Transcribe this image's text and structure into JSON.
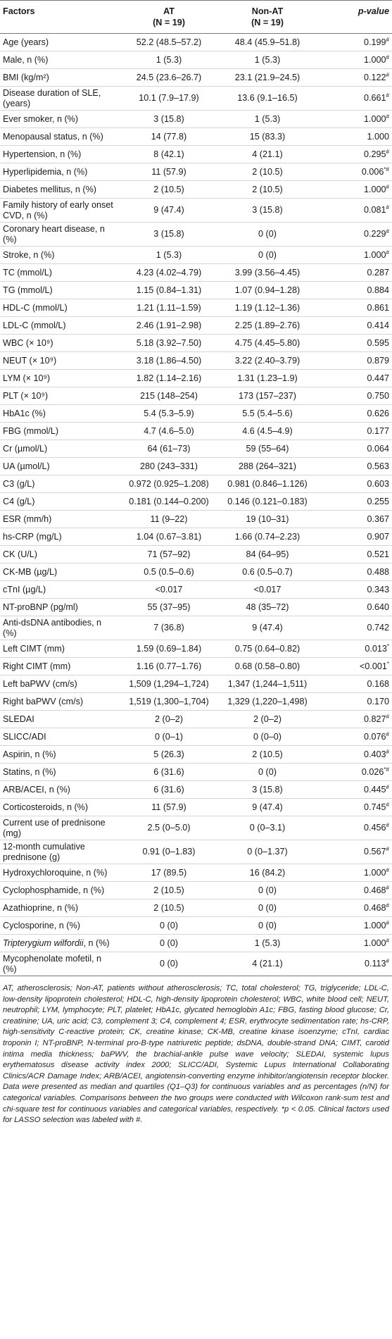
{
  "table": {
    "headers": {
      "factors": "Factors",
      "at": "AT",
      "at_n": "(N = 19)",
      "nonat": "Non-AT",
      "nonat_n": "(N = 19)",
      "pvalue": "p-value"
    },
    "rows": [
      {
        "factor": "Age (years)",
        "at": "52.2 (48.5–57.2)",
        "nonat": "48.4 (45.9–51.8)",
        "p": "0.199",
        "mark": "#"
      },
      {
        "factor": "Male, n (%)",
        "at": "1 (5.3)",
        "nonat": "1 (5.3)",
        "p": "1.000",
        "mark": "#"
      },
      {
        "factor": "BMI (kg/m²)",
        "at": "24.5 (23.6–26.7)",
        "nonat": "23.1 (21.9–24.5)",
        "p": "0.122",
        "mark": "#"
      },
      {
        "factor": "Disease duration of SLE, (years)",
        "at": "10.1 (7.9–17.9)",
        "nonat": "13.6 (9.1–16.5)",
        "p": "0.661",
        "mark": "#",
        "tall": true
      },
      {
        "factor": "Ever smoker, n (%)",
        "at": "3 (15.8)",
        "nonat": "1 (5.3)",
        "p": "1.000",
        "mark": "#"
      },
      {
        "factor": "Menopausal status, n (%)",
        "at": "14 (77.8)",
        "nonat": "15 (83.3)",
        "p": "1.000",
        "mark": ""
      },
      {
        "factor": "Hypertension, n (%)",
        "at": "8 (42.1)",
        "nonat": "4 (21.1)",
        "p": "0.295",
        "mark": "#"
      },
      {
        "factor": "Hyperlipidemia, n (%)",
        "at": "11 (57.9)",
        "nonat": "2 (10.5)",
        "p": "0.006",
        "mark": "*#"
      },
      {
        "factor": "Diabetes mellitus, n (%)",
        "at": "2 (10.5)",
        "nonat": "2 (10.5)",
        "p": "1.000",
        "mark": "#"
      },
      {
        "factor": "Family history of early onset CVD, n (%)",
        "at": "9 (47.4)",
        "nonat": "3 (15.8)",
        "p": "0.081",
        "mark": "#",
        "tall": true
      },
      {
        "factor": "Coronary heart disease, n (%)",
        "at": "3 (15.8)",
        "nonat": "0 (0)",
        "p": "0.229",
        "mark": "#",
        "tall": true
      },
      {
        "factor": "Stroke, n (%)",
        "at": "1 (5.3)",
        "nonat": "0 (0)",
        "p": "1.000",
        "mark": "#"
      },
      {
        "factor": "TC (mmol/L)",
        "at": "4.23 (4.02–4.79)",
        "nonat": "3.99 (3.56–4.45)",
        "p": "0.287",
        "mark": ""
      },
      {
        "factor": "TG (mmol/L)",
        "at": "1.15 (0.84–1.31)",
        "nonat": "1.07 (0.94–1.28)",
        "p": "0.884",
        "mark": ""
      },
      {
        "factor": "HDL-C (mmol/L)",
        "at": "1.21 (1.11–1.59)",
        "nonat": "1.19 (1.12–1.36)",
        "p": "0.861",
        "mark": ""
      },
      {
        "factor": "LDL-C (mmol/L)",
        "at": "2.46 (1.91–2.98)",
        "nonat": "2.25 (1.89–2.76)",
        "p": "0.414",
        "mark": ""
      },
      {
        "factor": "WBC (× 10⁹)",
        "at": "5.18 (3.92–7.50)",
        "nonat": "4.75 (4.45–5.80)",
        "p": "0.595",
        "mark": ""
      },
      {
        "factor": "NEUT (× 10⁹)",
        "at": "3.18 (1.86–4.50)",
        "nonat": "3.22 (2.40–3.79)",
        "p": "0.879",
        "mark": ""
      },
      {
        "factor": "LYM (× 10⁹)",
        "at": "1.82 (1.14–2.16)",
        "nonat": "1.31 (1.23–1.9)",
        "p": "0.447",
        "mark": ""
      },
      {
        "factor": "PLT (× 10⁹)",
        "at": "215 (148–254)",
        "nonat": "173 (157–237)",
        "p": "0.750",
        "mark": ""
      },
      {
        "factor": "HbA1c (%)",
        "at": "5.4 (5.3–5.9)",
        "nonat": "5.5 (5.4–5.6)",
        "p": "0.626",
        "mark": ""
      },
      {
        "factor": "FBG (mmol/L)",
        "at": "4.7 (4.6–5.0)",
        "nonat": "4.6 (4.5–4.9)",
        "p": "0.177",
        "mark": ""
      },
      {
        "factor": "Cr (µmol/L)",
        "at": "64 (61–73)",
        "nonat": "59 (55–64)",
        "p": "0.064",
        "mark": ""
      },
      {
        "factor": "UA (µmol/L)",
        "at": "280 (243–331)",
        "nonat": "288 (264–321)",
        "p": "0.563",
        "mark": ""
      },
      {
        "factor": "C3 (g/L)",
        "at": "0.972 (0.925–1.208)",
        "nonat": "0.981 (0.846–1.126)",
        "p": "0.603",
        "mark": ""
      },
      {
        "factor": "C4 (g/L)",
        "at": "0.181 (0.144–0.200)",
        "nonat": "0.146 (0.121–0.183)",
        "p": "0.255",
        "mark": ""
      },
      {
        "factor": "ESR (mm/h)",
        "at": "11 (9–22)",
        "nonat": "19 (10–31)",
        "p": "0.367",
        "mark": ""
      },
      {
        "factor": "hs-CRP (mg/L)",
        "at": "1.04 (0.67–3.81)",
        "nonat": "1.66 (0.74–2.23)",
        "p": "0.907",
        "mark": ""
      },
      {
        "factor": "CK (U/L)",
        "at": "71 (57–92)",
        "nonat": "84 (64–95)",
        "p": "0.521",
        "mark": ""
      },
      {
        "factor": "CK-MB (µg/L)",
        "at": "0.5 (0.5–0.6)",
        "nonat": "0.6 (0.5–0.7)",
        "p": "0.488",
        "mark": ""
      },
      {
        "factor": "cTnI (µg/L)",
        "at": "<0.017",
        "nonat": "<0.017",
        "p": "0.343",
        "mark": ""
      },
      {
        "factor": "NT-proBNP (pg/ml)",
        "at": "55 (37–95)",
        "nonat": "48 (35–72)",
        "p": "0.640",
        "mark": ""
      },
      {
        "factor": "Anti-dsDNA antibodies, n (%)",
        "at": "7 (36.8)",
        "nonat": "9 (47.4)",
        "p": "0.742",
        "mark": "",
        "tall": true
      },
      {
        "factor": "Left CIMT (mm)",
        "at": "1.59 (0.69–1.84)",
        "nonat": "0.75 (0.64–0.82)",
        "p": "0.013",
        "mark": "*"
      },
      {
        "factor": "Right CIMT (mm)",
        "at": "1.16 (0.77–1.76)",
        "nonat": "0.68 (0.58–0.80)",
        "p": "<0.001",
        "mark": "*"
      },
      {
        "factor": "Left baPWV (cm/s)",
        "at": "1,509 (1,294–1,724)",
        "nonat": "1,347 (1,244–1,511)",
        "p": "0.168",
        "mark": ""
      },
      {
        "factor": "Right baPWV (cm/s)",
        "at": "1,519 (1,300–1,704)",
        "nonat": "1,329 (1,220–1,498)",
        "p": "0.170",
        "mark": ""
      },
      {
        "factor": "SLEDAI",
        "at": "2 (0–2)",
        "nonat": "2 (0–2)",
        "p": "0.827",
        "mark": "#"
      },
      {
        "factor": "SLICC/ADI",
        "at": "0 (0–1)",
        "nonat": "0 (0–0)",
        "p": "0.076",
        "mark": "#"
      },
      {
        "factor": "Aspirin, n (%)",
        "at": "5 (26.3)",
        "nonat": "2 (10.5)",
        "p": "0.403",
        "mark": "#"
      },
      {
        "factor": "Statins, n (%)",
        "at": "6 (31.6)",
        "nonat": "0 (0)",
        "p": "0.026",
        "mark": "*#"
      },
      {
        "factor": "ARB/ACEI, n (%)",
        "at": "6 (31.6)",
        "nonat": "3 (15.8)",
        "p": "0.445",
        "mark": "#"
      },
      {
        "factor": "Corticosteroids, n (%)",
        "at": "11 (57.9)",
        "nonat": "9 (47.4)",
        "p": "0.745",
        "mark": "#"
      },
      {
        "factor": "Current use of prednisone (mg)",
        "at": "2.5 (0–5.0)",
        "nonat": "0 (0–3.1)",
        "p": "0.456",
        "mark": "#",
        "tall": true
      },
      {
        "factor": "12-month cumulative prednisone (g)",
        "at": "0.91 (0–1.83)",
        "nonat": "0 (0–1.37)",
        "p": "0.567",
        "mark": "#",
        "tall": true
      },
      {
        "factor": "Hydroxychloroquine, n (%)",
        "at": "17 (89.5)",
        "nonat": "16 (84.2)",
        "p": "1.000",
        "mark": "#"
      },
      {
        "factor": "Cyclophosphamide, n (%)",
        "at": "2 (10.5)",
        "nonat": "0 (0)",
        "p": "0.468",
        "mark": "#"
      },
      {
        "factor": "Azathioprine, n (%)",
        "at": "2 (10.5)",
        "nonat": "0 (0)",
        "p": "0.468",
        "mark": "#"
      },
      {
        "factor": "Cyclosporine, n (%)",
        "at": "0 (0)",
        "nonat": "0 (0)",
        "p": "1.000",
        "mark": "#"
      },
      {
        "factor": "Tripterygium wilfordii, n (%)",
        "at": "0 (0)",
        "nonat": "1 (5.3)",
        "p": "1.000",
        "mark": "#"
      },
      {
        "factor": "Mycophenolate mofetil, n (%)",
        "at": "0 (0)",
        "nonat": "4 (21.1)",
        "p": "0.113",
        "mark": "#",
        "tall": true
      }
    ]
  },
  "footnote": "AT, atherosclerosis; Non-AT, patients without atherosclerosis; TC, total cholesterol; TG, triglyceride; LDL-C, low-density lipoprotein cholesterol; HDL-C, high-density lipoprotein cholesterol; WBC, white blood cell; NEUT, neutrophil; LYM, lymphocyte; PLT, platelet; HbA1c, glycated hemoglobin A1c; FBG, fasting blood glucose; Cr, creatinine; UA, uric acid; C3, complement 3; C4, complement 4; ESR, erythrocyte sedimentation rate; hs-CRP, high-sensitivity C-reactive protein; CK, creatine kinase; CK-MB, creatine kinase isoenzyme; cTnI, cardiac troponin I; NT-proBNP, N-terminal pro-B-type natriuretic peptide; dsDNA, double-strand DNA; CIMT, carotid intima media thickness; baPWV, the brachial-ankle pulse wave velocity; SLEDAI, systemic lupus erythematosus disease activity index 2000; SLICC/ADI, Systemic Lupus International Collaborating Clinics/ACR Damage Index; ARB/ACEI, angiotensin-converting enzyme inhibitor/angiotensin receptor blocker. Data were presented as median and quartiles (Q1–Q3) for continuous variables and as percentages (n/N) for categorical variables. Comparisons between the two groups were conducted with Wilcoxon rank-sum test and chi-square test for continuous variables and categorical variables, respectively. *p < 0.05. Clinical factors used for LASSO selection was labeled with #."
}
